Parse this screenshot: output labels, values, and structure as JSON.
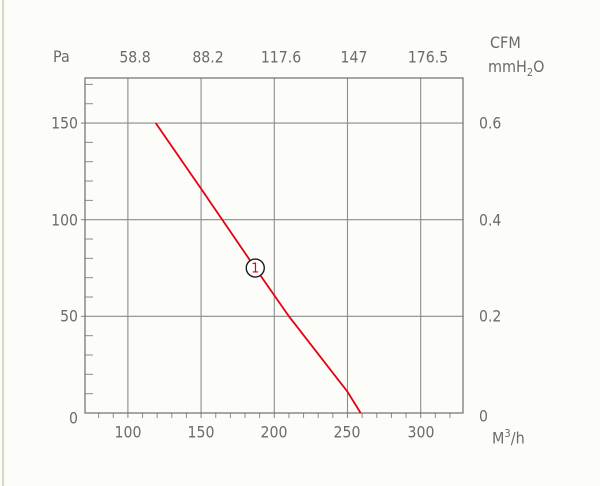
{
  "page": {
    "background": "#fcfcf8",
    "edge_line_color": "#d8d8c2"
  },
  "chart_data": {
    "type": "line",
    "title": "",
    "description": "Fan performance curve: static pressure vs airflow",
    "grid": true,
    "legend": "none",
    "axes": {
      "bottom": {
        "unit_prefix": "M",
        "unit_sup": "3",
        "unit_suffix": "/h",
        "tick_labels": [
          "100",
          "150",
          "200",
          "250",
          "300"
        ],
        "tick_values": [
          100,
          150,
          200,
          250,
          300
        ],
        "minor_step": 10,
        "range": [
          70.7,
          328.9
        ]
      },
      "top": {
        "unit": "CFM",
        "tick_labels": [
          "58.8",
          "88.2",
          "117.6",
          "147",
          "176.5"
        ],
        "aligned_bottom_values": [
          100,
          150,
          200,
          250,
          300
        ]
      },
      "left": {
        "unit": "Pa",
        "tick_labels": [
          "0",
          "50",
          "100",
          "150"
        ],
        "tick_values": [
          0,
          50,
          100,
          150
        ],
        "minor_step": 10,
        "range": [
          0,
          173.3
        ]
      },
      "right": {
        "unit_prefix": "mmH",
        "unit_sub": "2",
        "unit_suffix": "O",
        "tick_labels": [
          "0",
          "0.2",
          "0.4",
          "0.6"
        ],
        "aligned_left_values": [
          0,
          50,
          100,
          150
        ]
      }
    },
    "series": [
      {
        "name": "performance-curve-1",
        "color": "#e60013",
        "x": [
          119,
          150,
          187,
          210,
          250,
          259
        ],
        "y": [
          150,
          116,
          75,
          50,
          11,
          0
        ]
      }
    ],
    "markers": [
      {
        "label": "1",
        "x": 187,
        "y": 75,
        "label_color": "#e60013",
        "ring_color": "#1a1a1a"
      }
    ],
    "grid_color": "#8c8c8c",
    "frame_color": "#6f6f6f"
  }
}
